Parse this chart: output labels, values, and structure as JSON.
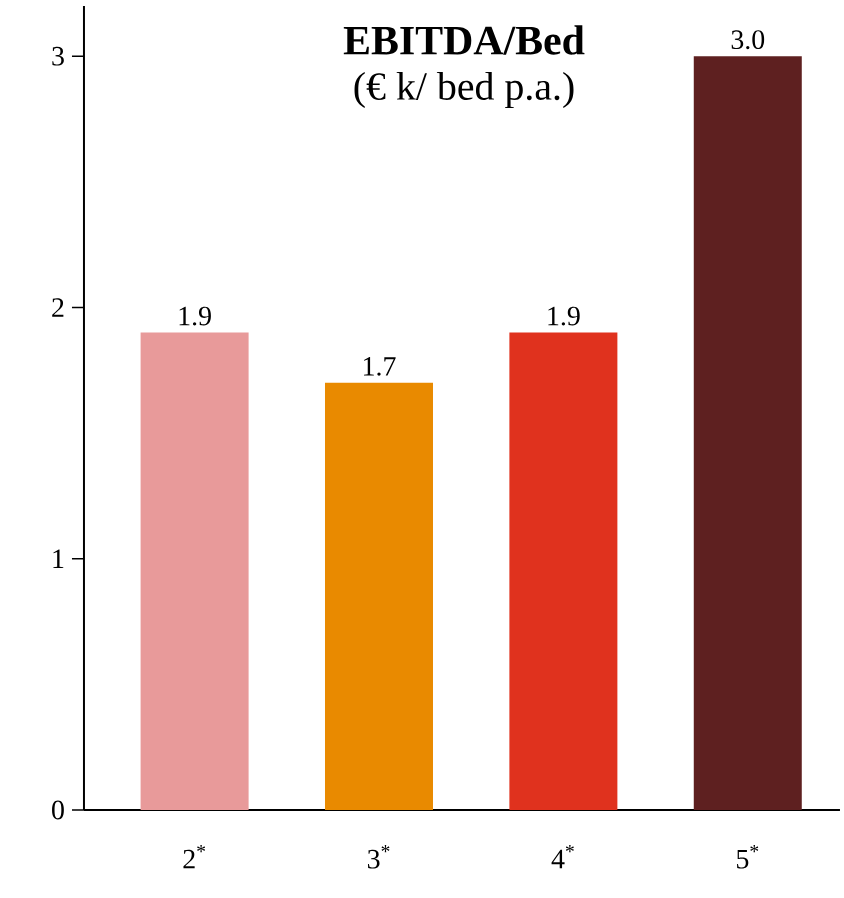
{
  "chart_data": {
    "type": "bar",
    "title": "EBITDA/Bed",
    "subtitle": "(€ k/ bed p.a.)",
    "categories": [
      "2$^{*}$",
      "3$^{*}$",
      "4$^{*}$",
      "5$^{*}$"
    ],
    "values": [
      1.9,
      1.7,
      1.9,
      3.0
    ],
    "value_labels": [
      "1.9",
      "1.7",
      "1.9",
      "3.0"
    ],
    "colors": [
      "#e89a9a",
      "#e98a00",
      "#e0321e",
      "#5e2020"
    ],
    "ylim": [
      0,
      3.2
    ],
    "yticks": [
      0,
      1,
      2,
      3
    ]
  }
}
